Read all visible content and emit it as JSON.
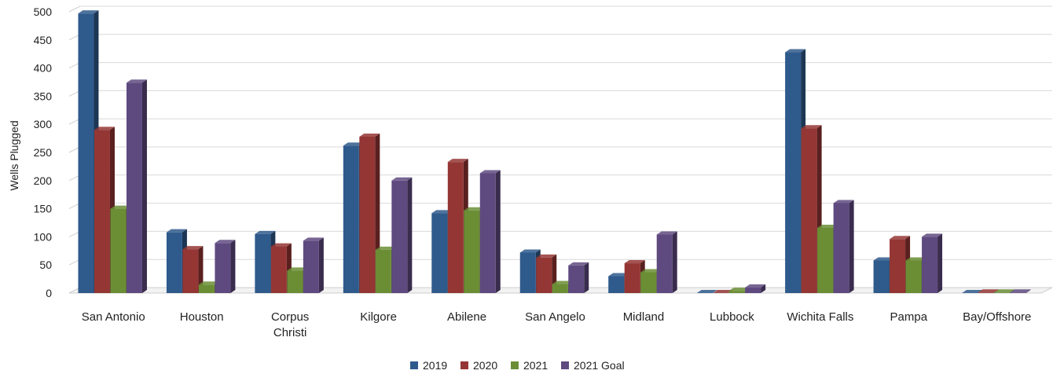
{
  "chart_data": {
    "type": "bar",
    "ylabel": "Wells Plugged",
    "xlabel": "",
    "ylim": [
      0,
      500
    ],
    "yticks": [
      0,
      50,
      100,
      150,
      200,
      250,
      300,
      350,
      400,
      450,
      500
    ],
    "grid": true,
    "legend_position": "bottom-center",
    "categories": [
      "San Antonio",
      "Houston",
      "Corpus Christi",
      "Kilgore",
      "Abilene",
      "San Angelo",
      "Midland",
      "Lubbock",
      "Wichita Falls",
      "Pampa",
      "Bay/Offshore"
    ],
    "series": [
      {
        "name": "2019",
        "color": "#2F5A8C",
        "values": [
          497,
          108,
          105,
          262,
          142,
          72,
          30,
          0,
          428,
          58,
          0
        ]
      },
      {
        "name": "2020",
        "color": "#943634",
        "values": [
          290,
          78,
          83,
          278,
          233,
          63,
          53,
          0,
          293,
          96,
          1
        ]
      },
      {
        "name": "2021",
        "color": "#6B8E35",
        "values": [
          150,
          15,
          40,
          77,
          147,
          16,
          37,
          4,
          116,
          58,
          1
        ]
      },
      {
        "name": "2021 Goal",
        "color": "#5F4A80",
        "values": [
          374,
          89,
          93,
          200,
          213,
          49,
          104,
          10,
          160,
          100,
          1
        ]
      }
    ]
  }
}
